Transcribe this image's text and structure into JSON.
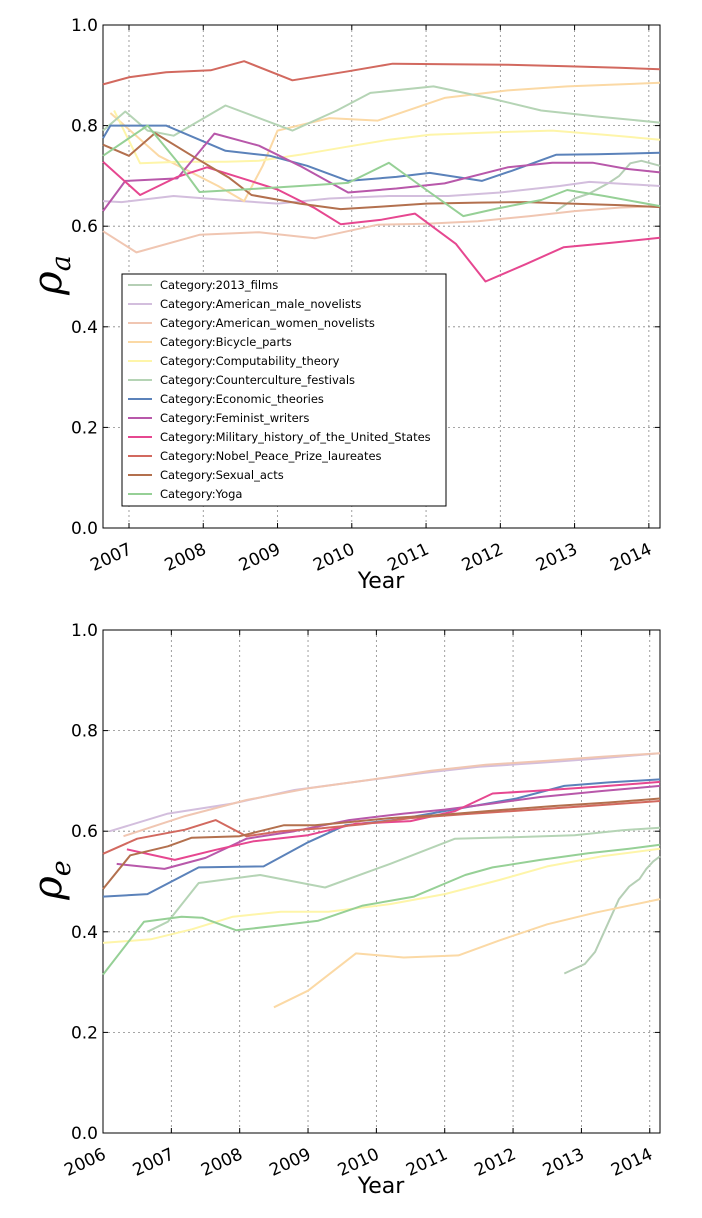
{
  "chart_data": [
    {
      "type": "line",
      "title": "",
      "xlabel": "Year",
      "ylabel_symbol": "ρ",
      "ylabel_sub": "a",
      "xlim": [
        2006.65,
        2014.15
      ],
      "ylim": [
        0.0,
        1.0
      ],
      "xticks": [
        "2007",
        "2008",
        "2009",
        "2010",
        "2011",
        "2012",
        "2013",
        "2014"
      ],
      "yticks": [
        "0.0",
        "0.2",
        "0.4",
        "0.6",
        "0.8",
        "1.0"
      ],
      "grid": true,
      "legend": "bottom-left",
      "series": [
        {
          "name": "Category:2013_films",
          "color": "#b5cfb5",
          "x": [
            2012.75,
            2013.0,
            2013.2,
            2013.45,
            2013.6,
            2013.75,
            2013.9,
            2014.15
          ],
          "y": [
            0.63,
            0.655,
            0.665,
            0.685,
            0.7,
            0.725,
            0.73,
            0.72
          ]
        },
        {
          "name": "Category:American_male_novelists",
          "color": "#d3bedd",
          "x": [
            2006.65,
            2006.9,
            2007.6,
            2008.3,
            2009.0,
            2009.7,
            2010.5,
            2011.3,
            2012.0,
            2012.8,
            2013.2,
            2014.15
          ],
          "y": [
            0.65,
            0.648,
            0.66,
            0.652,
            0.645,
            0.655,
            0.66,
            0.66,
            0.667,
            0.68,
            0.688,
            0.68
          ]
        },
        {
          "name": "Category:American_women_novelists",
          "color": "#f0c6b2",
          "x": [
            2006.65,
            2007.1,
            2007.95,
            2008.75,
            2009.5,
            2010.35,
            2011.0,
            2011.7,
            2012.4,
            2013.0,
            2013.6,
            2014.15
          ],
          "y": [
            0.59,
            0.548,
            0.583,
            0.588,
            0.576,
            0.603,
            0.605,
            0.61,
            0.62,
            0.63,
            0.637,
            0.64
          ]
        },
        {
          "name": "Category:Bicycle_parts",
          "color": "#fbd9a5",
          "x": [
            2006.75,
            2007.4,
            2008.2,
            2008.55,
            2008.8,
            2009.0,
            2009.7,
            2010.35,
            2011.25,
            2012.1,
            2012.9,
            2014.15
          ],
          "y": [
            0.825,
            0.74,
            0.68,
            0.65,
            0.72,
            0.79,
            0.815,
            0.81,
            0.855,
            0.87,
            0.878,
            0.885
          ]
        },
        {
          "name": "Category:Computability_theory",
          "color": "#fef5a9",
          "x": [
            2006.8,
            2007.15,
            2007.7,
            2008.3,
            2008.75,
            2009.3,
            2009.9,
            2010.5,
            2011.05,
            2011.8,
            2012.7,
            2013.4,
            2014.15
          ],
          "y": [
            0.83,
            0.725,
            0.728,
            0.728,
            0.73,
            0.742,
            0.757,
            0.772,
            0.782,
            0.786,
            0.79,
            0.782,
            0.772
          ]
        },
        {
          "name": "Category:Counterculture_festivals",
          "color": "#b5d4b5",
          "x": [
            2006.65,
            2006.95,
            2007.25,
            2007.6,
            2008.3,
            2009.2,
            2009.8,
            2010.25,
            2011.1,
            2011.9,
            2012.55,
            2013.3,
            2014.15
          ],
          "y": [
            0.79,
            0.828,
            0.79,
            0.78,
            0.84,
            0.79,
            0.83,
            0.865,
            0.878,
            0.853,
            0.83,
            0.818,
            0.806
          ]
        },
        {
          "name": "Category:Economic_theories",
          "color": "#5b82ba",
          "x": [
            2006.65,
            2006.75,
            2007.5,
            2008.3,
            2008.9,
            2009.4,
            2009.95,
            2010.6,
            2011.05,
            2011.75,
            2012.15,
            2012.75,
            2013.3,
            2014.15
          ],
          "y": [
            0.775,
            0.8,
            0.8,
            0.75,
            0.74,
            0.72,
            0.69,
            0.698,
            0.706,
            0.69,
            0.71,
            0.742,
            0.743,
            0.746
          ]
        },
        {
          "name": "Category:Feminist_writers",
          "color": "#b858aa",
          "x": [
            2006.65,
            2006.95,
            2007.65,
            2008.15,
            2008.75,
            2009.3,
            2009.95,
            2010.6,
            2011.25,
            2012.1,
            2012.7,
            2013.25,
            2013.7,
            2014.15
          ],
          "y": [
            0.63,
            0.69,
            0.695,
            0.784,
            0.76,
            0.72,
            0.667,
            0.675,
            0.685,
            0.717,
            0.726,
            0.726,
            0.714,
            0.707
          ]
        },
        {
          "name": "Category:Military_history_of_the_United_States",
          "color": "#e64790",
          "x": [
            2006.65,
            2007.15,
            2007.65,
            2008.05,
            2008.55,
            2009.0,
            2009.5,
            2009.85,
            2010.4,
            2010.85,
            2011.4,
            2011.8,
            2012.35,
            2012.85,
            2013.5,
            2014.15
          ],
          "y": [
            0.728,
            0.662,
            0.698,
            0.717,
            0.694,
            0.673,
            0.636,
            0.604,
            0.613,
            0.625,
            0.565,
            0.49,
            0.525,
            0.558,
            0.567,
            0.577
          ]
        },
        {
          "name": "Category:Nobel_Peace_Prize_laureates",
          "color": "#d2695f",
          "x": [
            2006.65,
            2007.0,
            2007.5,
            2008.1,
            2008.55,
            2009.2,
            2009.95,
            2010.55,
            2011.3,
            2012.1,
            2012.9,
            2013.6,
            2014.15
          ],
          "y": [
            0.882,
            0.896,
            0.906,
            0.91,
            0.928,
            0.89,
            0.908,
            0.923,
            0.922,
            0.921,
            0.918,
            0.915,
            0.912
          ]
        },
        {
          "name": "Category:Sexual_acts",
          "color": "#b3704e",
          "x": [
            2006.65,
            2007.0,
            2007.35,
            2007.85,
            2008.35,
            2008.65,
            2009.3,
            2009.85,
            2010.4,
            2011.0,
            2011.7,
            2012.35,
            2012.95,
            2013.6,
            2014.15
          ],
          "y": [
            0.762,
            0.74,
            0.785,
            0.74,
            0.696,
            0.662,
            0.645,
            0.634,
            0.639,
            0.645,
            0.647,
            0.648,
            0.645,
            0.642,
            0.638
          ]
        },
        {
          "name": "Category:Yoga",
          "color": "#96d096",
          "x": [
            2006.65,
            2007.25,
            2007.65,
            2007.95,
            2008.65,
            2009.3,
            2009.95,
            2010.5,
            2010.95,
            2011.5,
            2011.95,
            2012.55,
            2012.9,
            2013.4,
            2014.15
          ],
          "y": [
            0.74,
            0.8,
            0.728,
            0.668,
            0.674,
            0.68,
            0.686,
            0.726,
            0.678,
            0.62,
            0.635,
            0.652,
            0.672,
            0.66,
            0.64
          ]
        }
      ]
    },
    {
      "type": "line",
      "title": "",
      "xlabel": "Year",
      "ylabel_symbol": "ρ",
      "ylabel_sub": "e",
      "xlim": [
        2006.0,
        2014.15
      ],
      "ylim": [
        0.0,
        1.0
      ],
      "xticks": [
        "2006",
        "2007",
        "2008",
        "2009",
        "2010",
        "2011",
        "2012",
        "2013",
        "2014"
      ],
      "yticks": [
        "0.0",
        "0.2",
        "0.4",
        "0.6",
        "0.8",
        "1.0"
      ],
      "grid": true,
      "legend": "none",
      "series": [
        {
          "name": "Category:2013_films",
          "color": "#b5cfb5",
          "x": [
            2012.75,
            2013.05,
            2013.2,
            2013.35,
            2013.55,
            2013.7,
            2013.85,
            2013.95,
            2014.05,
            2014.15
          ],
          "y": [
            0.317,
            0.336,
            0.36,
            0.405,
            0.465,
            0.49,
            0.505,
            0.525,
            0.54,
            0.55
          ]
        },
        {
          "name": "Category:American_male_novelists",
          "color": "#d3bedd",
          "x": [
            2006.1,
            2006.95,
            2007.9,
            2008.8,
            2009.8,
            2010.7,
            2011.5,
            2012.4,
            2013.3,
            2014.15
          ],
          "y": [
            0.6,
            0.635,
            0.655,
            0.682,
            0.7,
            0.716,
            0.728,
            0.736,
            0.745,
            0.755
          ]
        },
        {
          "name": "Category:American_women_novelists",
          "color": "#f0c6b2",
          "x": [
            2006.3,
            2007.2,
            2008.1,
            2009.0,
            2009.9,
            2010.8,
            2011.6,
            2012.5,
            2013.3,
            2014.15
          ],
          "y": [
            0.59,
            0.63,
            0.662,
            0.685,
            0.702,
            0.72,
            0.732,
            0.74,
            0.748,
            0.755
          ]
        },
        {
          "name": "Category:Bicycle_parts",
          "color": "#fbd9a5",
          "x": [
            2008.5,
            2009.0,
            2009.7,
            2010.4,
            2011.2,
            2011.8,
            2012.5,
            2013.2,
            2014.15
          ],
          "y": [
            0.25,
            0.283,
            0.357,
            0.349,
            0.353,
            0.383,
            0.415,
            0.438,
            0.465
          ]
        },
        {
          "name": "Category:Computability_theory",
          "color": "#fef5a9",
          "x": [
            2006.0,
            2006.7,
            2007.3,
            2007.9,
            2008.6,
            2009.3,
            2010.2,
            2011.0,
            2011.8,
            2012.5,
            2013.3,
            2014.15
          ],
          "y": [
            0.378,
            0.385,
            0.405,
            0.43,
            0.44,
            0.44,
            0.455,
            0.475,
            0.503,
            0.53,
            0.55,
            0.565
          ]
        },
        {
          "name": "Category:Counterculture_festivals",
          "color": "#b5d4b5",
          "x": [
            2006.65,
            2006.95,
            2007.4,
            2008.3,
            2009.25,
            2010.2,
            2011.15,
            2012.0,
            2012.9,
            2013.6,
            2014.15
          ],
          "y": [
            0.4,
            0.42,
            0.497,
            0.513,
            0.488,
            0.535,
            0.585,
            0.588,
            0.592,
            0.602,
            0.607
          ]
        },
        {
          "name": "Category:Economic_theories",
          "color": "#5b82ba",
          "x": [
            2006.0,
            2006.65,
            2007.4,
            2008.35,
            2009.0,
            2009.55,
            2010.3,
            2011.2,
            2012.05,
            2012.75,
            2013.4,
            2014.15
          ],
          "y": [
            0.47,
            0.475,
            0.528,
            0.53,
            0.578,
            0.612,
            0.623,
            0.645,
            0.665,
            0.69,
            0.697,
            0.703
          ]
        },
        {
          "name": "Category:Feminist_writers",
          "color": "#b858aa",
          "x": [
            2006.2,
            2006.9,
            2007.5,
            2008.1,
            2008.8,
            2009.6,
            2010.4,
            2011.0,
            2011.7,
            2012.4,
            2013.3,
            2014.15
          ],
          "y": [
            0.535,
            0.525,
            0.547,
            0.585,
            0.6,
            0.622,
            0.635,
            0.643,
            0.655,
            0.668,
            0.68,
            0.69
          ]
        },
        {
          "name": "Category:Military_history_of_the_United_States",
          "color": "#e64790",
          "x": [
            2006.35,
            2007.05,
            2007.65,
            2008.2,
            2009.0,
            2009.7,
            2010.5,
            2011.15,
            2011.7,
            2012.3,
            2013.2,
            2014.15
          ],
          "y": [
            0.564,
            0.543,
            0.563,
            0.58,
            0.592,
            0.615,
            0.62,
            0.64,
            0.675,
            0.68,
            0.688,
            0.698
          ]
        },
        {
          "name": "Category:Nobel_Peace_Prize_laureates",
          "color": "#d2695f",
          "x": [
            2006.0,
            2006.5,
            2007.2,
            2007.65,
            2008.1,
            2008.6,
            2009.2,
            2009.8,
            2010.5,
            2011.3,
            2012.2,
            2013.1,
            2014.15
          ],
          "y": [
            0.555,
            0.585,
            0.603,
            0.622,
            0.59,
            0.6,
            0.606,
            0.614,
            0.626,
            0.634,
            0.642,
            0.65,
            0.66
          ]
        },
        {
          "name": "Category:Sexual_acts",
          "color": "#b3704e",
          "x": [
            2006.0,
            2006.4,
            2006.95,
            2007.3,
            2008.0,
            2008.65,
            2009.1,
            2009.6,
            2010.2,
            2011.0,
            2011.8,
            2012.6,
            2013.4,
            2014.15
          ],
          "y": [
            0.485,
            0.552,
            0.57,
            0.587,
            0.59,
            0.612,
            0.612,
            0.618,
            0.626,
            0.633,
            0.642,
            0.65,
            0.657,
            0.665
          ]
        },
        {
          "name": "Category:Yoga",
          "color": "#96d096",
          "x": [
            2006.0,
            2006.6,
            2007.15,
            2007.45,
            2007.95,
            2008.6,
            2009.15,
            2009.8,
            2010.55,
            2011.3,
            2011.7,
            2012.4,
            2013.1,
            2013.7,
            2014.15
          ],
          "y": [
            0.315,
            0.42,
            0.43,
            0.428,
            0.403,
            0.413,
            0.422,
            0.452,
            0.47,
            0.513,
            0.528,
            0.543,
            0.556,
            0.565,
            0.573
          ]
        }
      ]
    }
  ]
}
